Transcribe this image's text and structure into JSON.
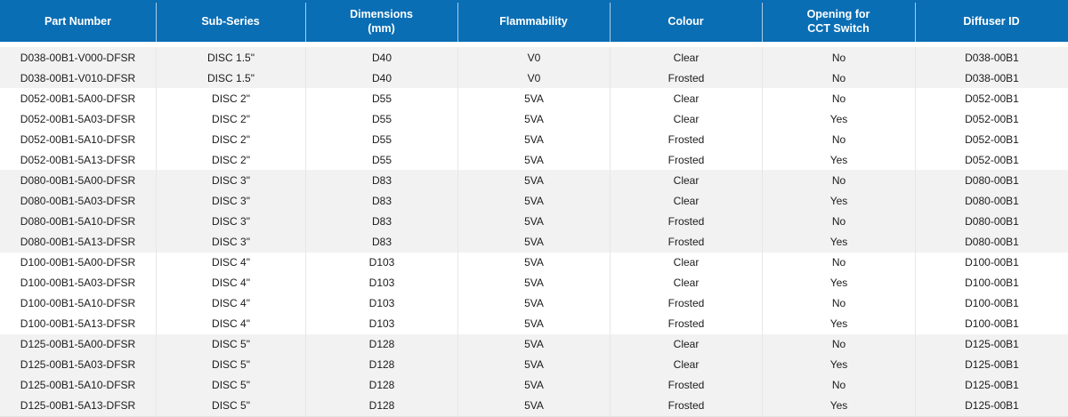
{
  "colors": {
    "header_bg": "#0a6eb5",
    "header_text": "#ffffff",
    "band_gray": "#f2f2f2",
    "band_white": "#ffffff",
    "body_text": "#1b1b1b",
    "separator": "#e7e7e7"
  },
  "table": {
    "columns": [
      {
        "id": "part-number",
        "label": "Part Number"
      },
      {
        "id": "sub-series",
        "label": "Sub-Series"
      },
      {
        "id": "dimensions-mm",
        "label": "Dimensions\n(mm)"
      },
      {
        "id": "flammability",
        "label": "Flammability"
      },
      {
        "id": "colour",
        "label": "Colour"
      },
      {
        "id": "cct-switch-opening",
        "label": "Opening for\nCCT Switch"
      },
      {
        "id": "diffuser-id",
        "label": "Diffuser ID"
      }
    ],
    "rows": [
      {
        "band": "gray",
        "cells": [
          "D038-00B1-V000-DFSR",
          "DISC 1.5\"",
          "D40",
          "V0",
          "Clear",
          "No",
          "D038-00B1"
        ]
      },
      {
        "band": "gray",
        "cells": [
          "D038-00B1-V010-DFSR",
          "DISC 1.5\"",
          "D40",
          "V0",
          "Frosted",
          "No",
          "D038-00B1"
        ]
      },
      {
        "band": "white",
        "cells": [
          "D052-00B1-5A00-DFSR",
          "DISC 2\"",
          "D55",
          "5VA",
          "Clear",
          "No",
          "D052-00B1"
        ]
      },
      {
        "band": "white",
        "cells": [
          "D052-00B1-5A03-DFSR",
          "DISC 2\"",
          "D55",
          "5VA",
          "Clear",
          "Yes",
          "D052-00B1"
        ]
      },
      {
        "band": "white",
        "cells": [
          "D052-00B1-5A10-DFSR",
          "DISC 2\"",
          "D55",
          "5VA",
          "Frosted",
          "No",
          "D052-00B1"
        ]
      },
      {
        "band": "white",
        "cells": [
          "D052-00B1-5A13-DFSR",
          "DISC 2\"",
          "D55",
          "5VA",
          "Frosted",
          "Yes",
          "D052-00B1"
        ]
      },
      {
        "band": "gray",
        "cells": [
          "D080-00B1-5A00-DFSR",
          "DISC 3\"",
          "D83",
          "5VA",
          "Clear",
          "No",
          "D080-00B1"
        ]
      },
      {
        "band": "gray",
        "cells": [
          "D080-00B1-5A03-DFSR",
          "DISC 3\"",
          "D83",
          "5VA",
          "Clear",
          "Yes",
          "D080-00B1"
        ]
      },
      {
        "band": "gray",
        "cells": [
          "D080-00B1-5A10-DFSR",
          "DISC 3\"",
          "D83",
          "5VA",
          "Frosted",
          "No",
          "D080-00B1"
        ]
      },
      {
        "band": "gray",
        "cells": [
          "D080-00B1-5A13-DFSR",
          "DISC 3\"",
          "D83",
          "5VA",
          "Frosted",
          "Yes",
          "D080-00B1"
        ]
      },
      {
        "band": "white",
        "cells": [
          "D100-00B1-5A00-DFSR",
          "DISC 4\"",
          "D103",
          "5VA",
          "Clear",
          "No",
          "D100-00B1"
        ]
      },
      {
        "band": "white",
        "cells": [
          "D100-00B1-5A03-DFSR",
          "DISC 4\"",
          "D103",
          "5VA",
          "Clear",
          "Yes",
          "D100-00B1"
        ]
      },
      {
        "band": "white",
        "cells": [
          "D100-00B1-5A10-DFSR",
          "DISC 4\"",
          "D103",
          "5VA",
          "Frosted",
          "No",
          "D100-00B1"
        ]
      },
      {
        "band": "white",
        "cells": [
          "D100-00B1-5A13-DFSR",
          "DISC 4\"",
          "D103",
          "5VA",
          "Frosted",
          "Yes",
          "D100-00B1"
        ]
      },
      {
        "band": "gray",
        "cells": [
          "D125-00B1-5A00-DFSR",
          "DISC 5\"",
          "D128",
          "5VA",
          "Clear",
          "No",
          "D125-00B1"
        ]
      },
      {
        "band": "gray",
        "cells": [
          "D125-00B1-5A03-DFSR",
          "DISC 5\"",
          "D128",
          "5VA",
          "Clear",
          "Yes",
          "D125-00B1"
        ]
      },
      {
        "band": "gray",
        "cells": [
          "D125-00B1-5A10-DFSR",
          "DISC 5\"",
          "D128",
          "5VA",
          "Frosted",
          "No",
          "D125-00B1"
        ]
      },
      {
        "band": "gray",
        "cells": [
          "D125-00B1-5A13-DFSR",
          "DISC 5\"",
          "D128",
          "5VA",
          "Frosted",
          "Yes",
          "D125-00B1"
        ]
      }
    ]
  }
}
